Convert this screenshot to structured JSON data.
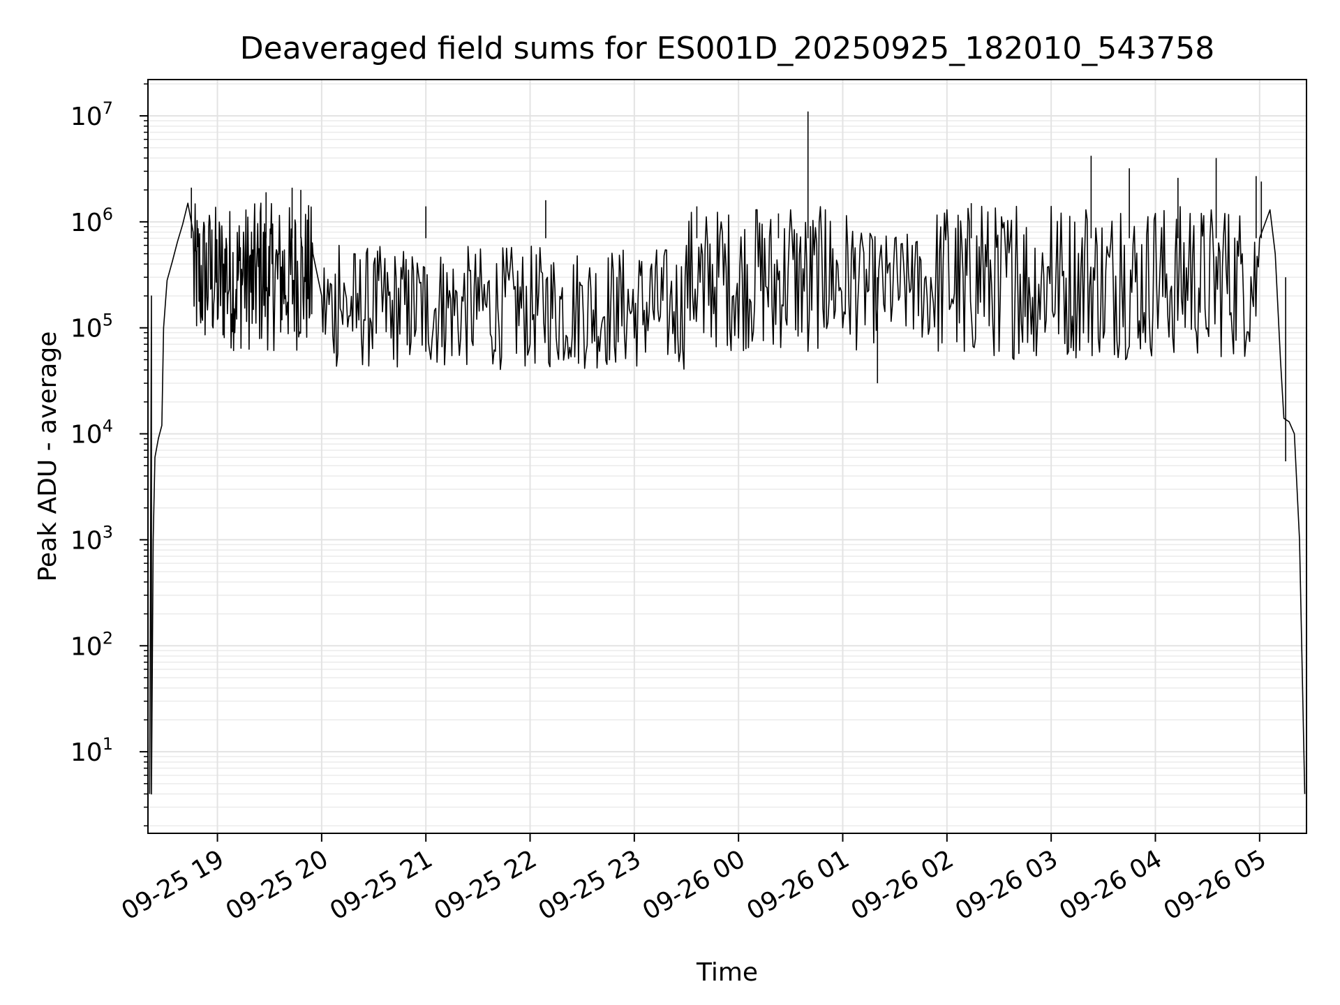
{
  "chart_data": {
    "type": "line",
    "title": "Deaveraged field sums for ES001D_20250925_182010_543758",
    "xlabel": "Time",
    "ylabel": "Peak ADU - average",
    "yscale": "log",
    "ylim": [
      1.7,
      22000000
    ],
    "xlim": [
      "2025-09-25 18:20",
      "2025-09-26 05:27"
    ],
    "grid": true,
    "line_color": "#000000",
    "x_ticks": [
      {
        "t": "2025-09-25 19:00",
        "label": "09-25 19"
      },
      {
        "t": "2025-09-25 20:00",
        "label": "09-25 20"
      },
      {
        "t": "2025-09-25 21:00",
        "label": "09-25 21"
      },
      {
        "t": "2025-09-25 22:00",
        "label": "09-25 22"
      },
      {
        "t": "2025-09-25 23:00",
        "label": "09-25 23"
      },
      {
        "t": "2025-09-26 00:00",
        "label": "09-26 00"
      },
      {
        "t": "2025-09-26 01:00",
        "label": "09-26 01"
      },
      {
        "t": "2025-09-26 02:00",
        "label": "09-26 02"
      },
      {
        "t": "2025-09-26 03:00",
        "label": "09-26 03"
      },
      {
        "t": "2025-09-26 04:00",
        "label": "09-26 04"
      },
      {
        "t": "2025-09-26 05:00",
        "label": "09-26 05"
      }
    ],
    "y_ticks": [
      {
        "value": 10,
        "base": "10",
        "exp": "1"
      },
      {
        "value": 100,
        "base": "10",
        "exp": "2"
      },
      {
        "value": 1000,
        "base": "10",
        "exp": "3"
      },
      {
        "value": 10000,
        "base": "10",
        "exp": "4"
      },
      {
        "value": 100000,
        "base": "10",
        "exp": "5"
      },
      {
        "value": 1000000,
        "base": "10",
        "exp": "6"
      },
      {
        "value": 10000000,
        "base": "10",
        "exp": "7"
      }
    ],
    "series": [
      {
        "points": [
          [
            "2025-09-25 18:21",
            4
          ],
          [
            "2025-09-25 18:22",
            200000
          ],
          [
            "2025-09-25 18:22",
            4
          ],
          [
            "2025-09-25 18:23",
            1000
          ],
          [
            "2025-09-25 18:24",
            6000
          ],
          [
            "2025-09-25 18:26",
            9000
          ],
          [
            "2025-09-25 18:28",
            12000
          ],
          [
            "2025-09-25 18:29",
            100000
          ],
          [
            "2025-09-25 18:31",
            280000
          ],
          [
            "2025-09-25 18:34",
            420000
          ],
          [
            "2025-09-25 18:37",
            650000
          ],
          [
            "2025-09-25 18:40",
            950000
          ],
          [
            "2025-09-25 18:43",
            1500000
          ],
          [
            "2025-09-25 18:46",
            800000
          ],
          [
            "2025-09-25 18:50",
            150000
          ],
          [
            "2025-09-25 18:55",
            900000
          ],
          [
            "2025-09-25 19:00",
            120000
          ],
          [
            "2025-09-25 19:05",
            700000
          ],
          [
            "2025-09-25 19:10",
            90000
          ],
          [
            "2025-09-25 19:15",
            800000
          ],
          [
            "2025-09-25 19:20",
            110000
          ],
          [
            "2025-09-25 19:25",
            1500000
          ],
          [
            "2025-09-25 19:30",
            200000
          ],
          [
            "2025-09-25 19:35",
            500000
          ],
          [
            "2025-09-25 19:40",
            150000
          ],
          [
            "2025-09-25 19:45",
            950000
          ],
          [
            "2025-09-25 19:50",
            300000
          ],
          [
            "2025-09-25 19:55",
            500000
          ],
          [
            "2025-09-25 20:00",
            200000
          ],
          [
            "2025-09-25 20:10",
            600000
          ],
          [
            "2025-09-25 20:20",
            100000
          ],
          [
            "2025-09-25 20:30",
            400000
          ],
          [
            "2025-09-25 20:40",
            80000
          ],
          [
            "2025-09-25 20:50",
            350000
          ],
          [
            "2025-09-25 21:00",
            60000
          ],
          [
            "2025-09-25 21:10",
            400000
          ],
          [
            "2025-09-25 21:20",
            80000
          ],
          [
            "2025-09-25 21:30",
            300000
          ],
          [
            "2025-09-25 21:40",
            60000
          ],
          [
            "2025-09-25 21:50",
            350000
          ],
          [
            "2025-09-25 22:00",
            70000
          ],
          [
            "2025-09-25 22:10",
            300000
          ],
          [
            "2025-09-25 22:20",
            60000
          ],
          [
            "2025-09-25 22:30",
            250000
          ],
          [
            "2025-09-25 22:40",
            60000
          ],
          [
            "2025-09-25 22:50",
            300000
          ],
          [
            "2025-09-25 23:00",
            80000
          ],
          [
            "2025-09-25 23:10",
            400000
          ],
          [
            "2025-09-25 23:20",
            100000
          ],
          [
            "2025-09-25 23:30",
            600000
          ],
          [
            "2025-09-25 23:40",
            90000
          ],
          [
            "2025-09-25 23:50",
            1000000
          ],
          [
            "2025-09-26 00:00",
            80000
          ],
          [
            "2025-09-26 00:10",
            1300000
          ],
          [
            "2025-09-26 00:20",
            70000
          ],
          [
            "2025-09-26 00:30",
            1300000
          ],
          [
            "2025-09-26 00:40",
            60000
          ],
          [
            "2025-09-26 00:50",
            1300000
          ],
          [
            "2025-09-26 01:00",
            100000
          ],
          [
            "2025-09-26 01:10",
            600000
          ],
          [
            "2025-09-26 01:20",
            150000
          ],
          [
            "2025-09-26 01:30",
            700000
          ],
          [
            "2025-09-26 01:40",
            600000
          ],
          [
            "2025-09-26 01:50",
            100000
          ],
          [
            "2025-09-26 02:00",
            1300000
          ],
          [
            "2025-09-26 02:10",
            60000
          ],
          [
            "2025-09-26 02:20",
            1400000
          ],
          [
            "2025-09-26 02:30",
            60000
          ],
          [
            "2025-09-26 02:40",
            1400000
          ],
          [
            "2025-09-26 02:50",
            60000
          ],
          [
            "2025-09-26 03:00",
            1400000
          ],
          [
            "2025-09-26 03:10",
            60000
          ],
          [
            "2025-09-26 03:20",
            1300000
          ],
          [
            "2025-09-26 03:30",
            80000
          ],
          [
            "2025-09-26 03:40",
            1200000
          ],
          [
            "2025-09-26 03:50",
            80000
          ],
          [
            "2025-09-26 04:00",
            1200000
          ],
          [
            "2025-09-26 04:10",
            80000
          ],
          [
            "2025-09-26 04:20",
            1200000
          ],
          [
            "2025-09-26 04:30",
            100000
          ],
          [
            "2025-09-26 04:40",
            1200000
          ],
          [
            "2025-09-26 04:50",
            500000
          ],
          [
            "2025-09-26 05:00",
            700000
          ],
          [
            "2025-09-26 05:06",
            1300000
          ],
          [
            "2025-09-26 05:09",
            500000
          ],
          [
            "2025-09-26 05:12",
            50000
          ],
          [
            "2025-09-26 05:14",
            14000
          ],
          [
            "2025-09-26 05:17",
            13000
          ],
          [
            "2025-09-26 05:20",
            10000
          ],
          [
            "2025-09-26 05:23",
            1000
          ],
          [
            "2025-09-26 05:26",
            4
          ]
        ],
        "spikes": [
          [
            "2025-09-25 18:45",
            2100000
          ],
          [
            "2025-09-25 19:28",
            1900000
          ],
          [
            "2025-09-25 19:43",
            2100000
          ],
          [
            "2025-09-25 19:48",
            2000000
          ],
          [
            "2025-09-25 21:00",
            1400000
          ],
          [
            "2025-09-25 22:09",
            1600000
          ],
          [
            "2025-09-25 23:36",
            1400000
          ],
          [
            "2025-09-26 00:23",
            1200000
          ],
          [
            "2025-09-26 00:40",
            11000000
          ],
          [
            "2025-09-26 01:20",
            30000
          ],
          [
            "2025-09-26 02:14",
            1500000
          ],
          [
            "2025-09-26 03:23",
            4200000
          ],
          [
            "2025-09-26 03:45",
            3200000
          ],
          [
            "2025-09-26 04:13",
            2600000
          ],
          [
            "2025-09-26 04:35",
            4000000
          ],
          [
            "2025-09-26 04:58",
            2700000
          ],
          [
            "2025-09-26 05:01",
            2400000
          ],
          [
            "2025-09-26 05:15",
            5500
          ]
        ],
        "noise_bands": [
          {
            "from": "2025-09-25 18:45",
            "to": "2025-09-25 19:58",
            "low": 60000,
            "high": 1500000
          },
          {
            "from": "2025-09-25 19:58",
            "to": "2025-09-25 23:30",
            "low": 40000,
            "high": 600000
          },
          {
            "from": "2025-09-25 23:30",
            "to": "2025-09-26 01:10",
            "low": 60000,
            "high": 1400000
          },
          {
            "from": "2025-09-26 01:10",
            "to": "2025-09-26 01:50",
            "low": 70000,
            "high": 800000
          },
          {
            "from": "2025-09-26 01:50",
            "to": "2025-09-26 05:05",
            "low": 50000,
            "high": 1500000
          }
        ]
      }
    ]
  }
}
